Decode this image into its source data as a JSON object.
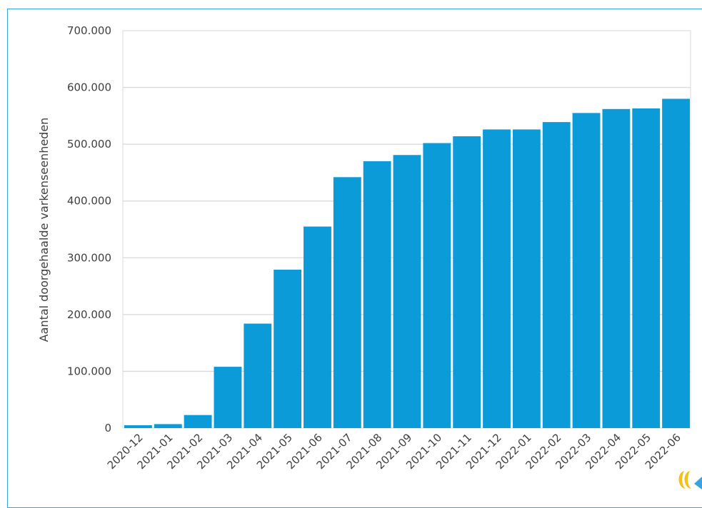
{
  "chart_data": {
    "type": "bar",
    "title": "",
    "xlabel": "",
    "ylabel": "Aantal doorgehaalde varkenseenheden",
    "ylim": [
      0,
      700000
    ],
    "yticks": [
      0,
      100000,
      200000,
      300000,
      400000,
      500000,
      600000,
      700000
    ],
    "ytick_labels": [
      "0",
      "100.000",
      "200.000",
      "300.000",
      "400.000",
      "500.000",
      "600.000",
      "700.000"
    ],
    "categories": [
      "2020-12",
      "2021-01",
      "2021-02",
      "2021-03",
      "2021-04",
      "2021-05",
      "2021-06",
      "2021-07",
      "2021-08",
      "2021-09",
      "2021-10",
      "2021-11",
      "2021-12",
      "2022-01",
      "2022-02",
      "2022-03",
      "2022-04",
      "2022-05",
      "2022-06"
    ],
    "values": [
      5000,
      7000,
      23000,
      108000,
      184000,
      279000,
      355000,
      442000,
      470000,
      481000,
      502000,
      514000,
      526000,
      526000,
      539000,
      555000,
      562000,
      563000,
      580000
    ],
    "bar_color": "#0a9bd8",
    "grid": true,
    "legend": "none"
  }
}
